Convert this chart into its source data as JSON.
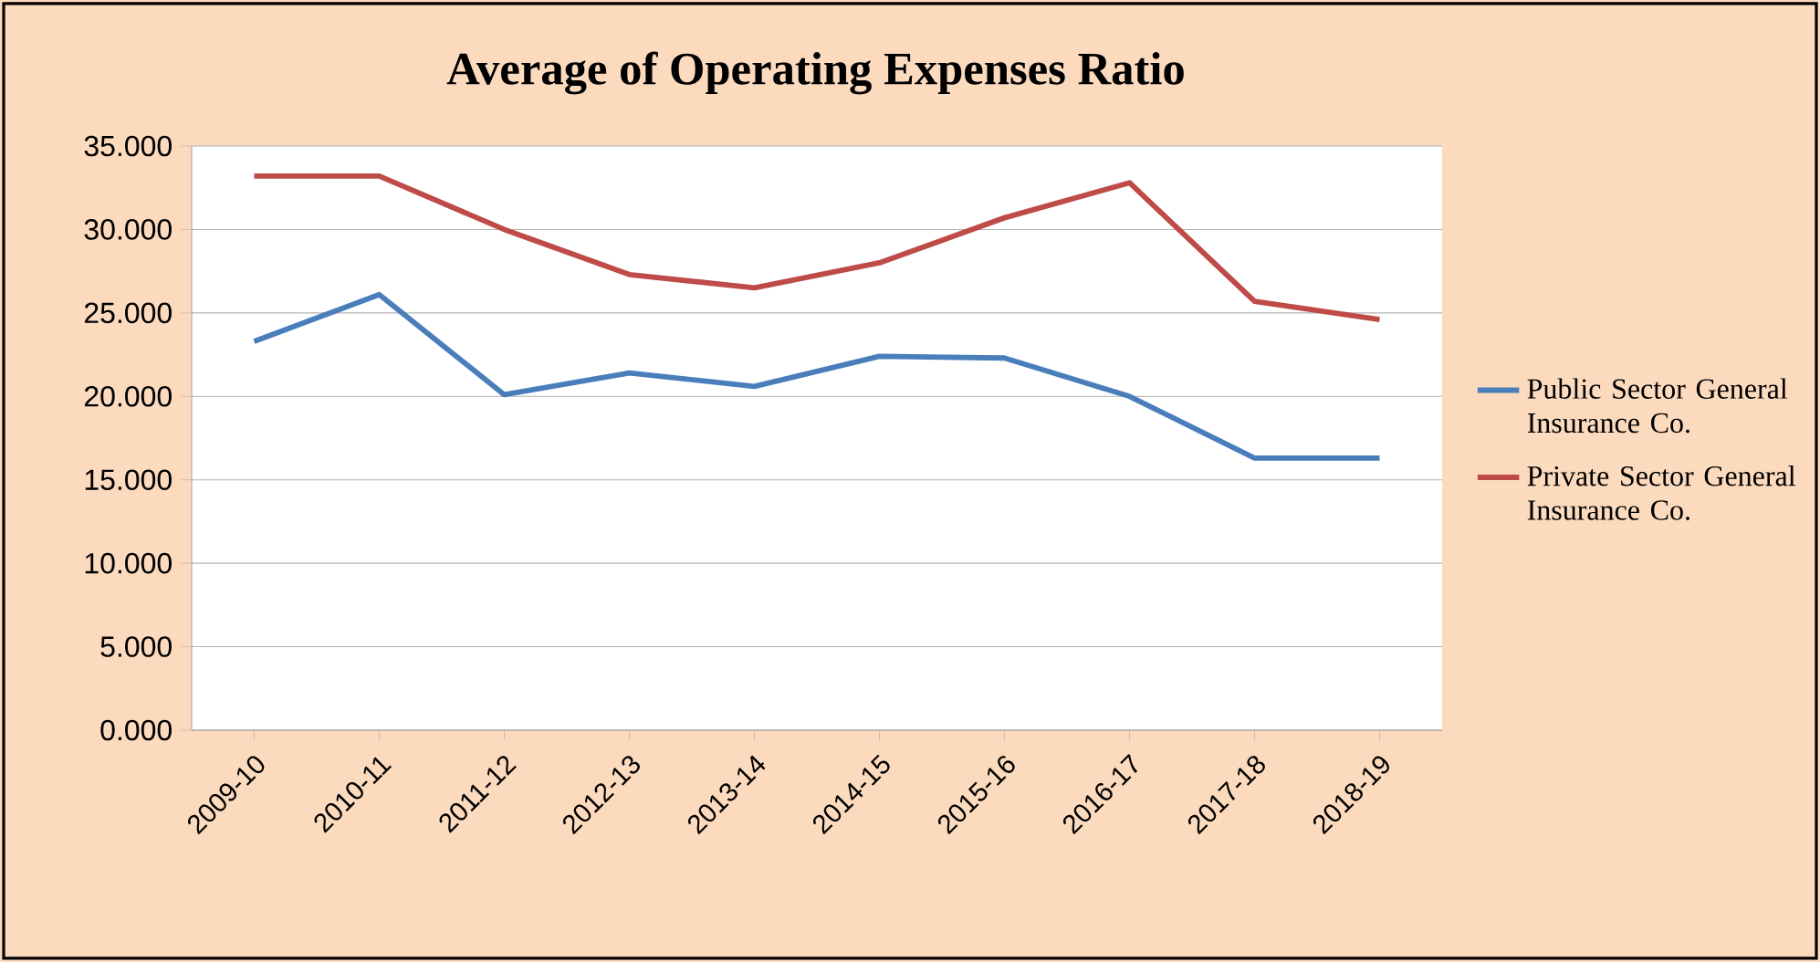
{
  "chart_data": {
    "type": "line",
    "title": "Average of Operating Expenses Ratio",
    "categories": [
      "2009-10",
      "2010-11",
      "2011-12",
      "2012-13",
      "2013-14",
      "2014-15",
      "2015-16",
      "2016-17",
      "2017-18",
      "2018-19"
    ],
    "series": [
      {
        "name": "Public Sector General Insurance Co.",
        "color": "#4a7ebb",
        "values": [
          23.3,
          26.1,
          20.1,
          21.4,
          20.6,
          22.4,
          22.3,
          20.0,
          16.3,
          16.3
        ]
      },
      {
        "name": "Private Sector General Insurance Co.",
        "color": "#be4b48",
        "values": [
          33.2,
          33.2,
          30.0,
          27.3,
          26.5,
          28.0,
          30.7,
          32.8,
          25.7,
          24.6
        ]
      }
    ],
    "ylim": [
      0,
      35
    ],
    "yticks": [
      {
        "value": 0,
        "label": "0.000"
      },
      {
        "value": 5,
        "label": "5.000"
      },
      {
        "value": 10,
        "label": "10.000"
      },
      {
        "value": 15,
        "label": "15.000"
      },
      {
        "value": 20,
        "label": "20.000"
      },
      {
        "value": 25,
        "label": "25.000"
      },
      {
        "value": 30,
        "label": "30.000"
      },
      {
        "value": 35,
        "label": "35.000"
      }
    ],
    "grid": "y",
    "legend": "right",
    "marker": "none",
    "line_style": "solid"
  }
}
